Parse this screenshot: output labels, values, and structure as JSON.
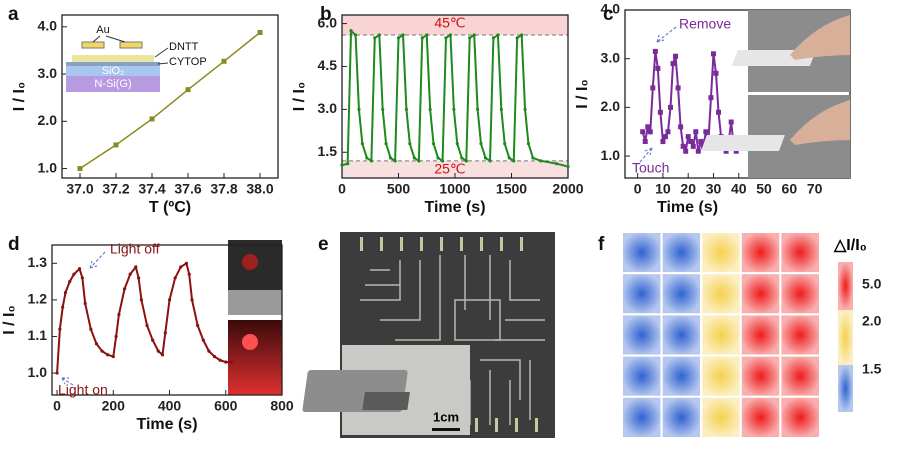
{
  "chart_data": [
    {
      "type": "line",
      "label": "a",
      "xlabel": "T (ºC)",
      "ylabel": "I / I₀",
      "color": "#8a8a1e",
      "marker": "square",
      "x": [
        37.0,
        37.2,
        37.4,
        37.6,
        37.8,
        38.0
      ],
      "values": [
        1.0,
        1.5,
        2.05,
        2.67,
        3.27,
        3.88
      ],
      "xlim": [
        36.9,
        38.1
      ],
      "xticks": [
        {
          "value": 37,
          "label": "37.0"
        },
        37.2,
        37.4,
        37.6,
        37.8,
        {
          "value": 38,
          "label": "38.0"
        }
      ],
      "ylim": [
        0.8,
        4.25
      ],
      "yticks": [
        {
          "value": 1,
          "label": "1.0"
        },
        {
          "value": 2,
          "label": "2.0"
        },
        {
          "value": 3,
          "label": "3.0"
        },
        {
          "value": 4,
          "label": "4.0"
        }
      ],
      "inset_labels": [
        "Au",
        "DNTT",
        "CYTOP",
        "SiO₂",
        "N-Si(G)"
      ]
    },
    {
      "type": "line",
      "label": "b",
      "xlabel": "Time (s)",
      "ylabel": "I / I₀",
      "color": "#1e8a1e",
      "marker": "circle",
      "x": [
        0,
        50,
        80,
        120,
        150,
        180,
        220,
        260,
        290,
        330,
        360,
        390,
        430,
        470,
        500,
        540,
        570,
        600,
        640,
        680,
        710,
        750,
        780,
        810,
        850,
        890,
        920,
        960,
        990,
        1020,
        1060,
        1100,
        1130,
        1170,
        1200,
        1230,
        1270,
        1310,
        1340,
        1380,
        1410,
        1440,
        1480,
        1520,
        1550,
        1590,
        1620,
        1650,
        1690,
        1760,
        1900,
        2000
      ],
      "values": [
        1.05,
        1.1,
        5.75,
        5.6,
        3.0,
        1.8,
        1.3,
        1.2,
        5.5,
        5.6,
        3.0,
        1.8,
        1.3,
        1.2,
        5.5,
        5.6,
        3.0,
        1.8,
        1.3,
        1.2,
        5.5,
        5.6,
        3.0,
        1.8,
        1.3,
        1.2,
        5.5,
        5.6,
        3.0,
        1.8,
        1.3,
        1.2,
        5.5,
        5.6,
        3.0,
        1.8,
        1.3,
        1.2,
        5.5,
        5.6,
        3.0,
        1.8,
        1.3,
        1.2,
        5.5,
        5.6,
        3.0,
        1.8,
        1.3,
        1.2,
        1.1,
        1.0
      ],
      "xlim": [
        0,
        2000
      ],
      "xticks": [
        0,
        500,
        1000,
        1500,
        2000
      ],
      "ylim": [
        0.6,
        6.3
      ],
      "yticks": [
        1.5,
        {
          "value": 3,
          "label": "3.0"
        },
        4.5,
        {
          "value": 6,
          "label": "6.0"
        }
      ],
      "reference_lines": [
        5.6,
        1.2
      ],
      "annotations": [
        "45℃",
        "25℃"
      ]
    },
    {
      "type": "line",
      "label": "c",
      "xlabel": "Time (s)",
      "ylabel": "I / I₀",
      "color": "#7a2a9a",
      "marker": "square",
      "x": [
        2,
        3,
        4,
        5,
        6,
        7,
        8,
        9,
        10,
        11,
        12,
        13,
        14,
        15,
        16,
        17,
        18,
        19,
        20,
        21,
        22,
        23,
        24,
        25,
        26,
        27,
        28,
        29,
        30,
        31,
        32,
        33,
        34,
        35,
        36,
        37,
        38,
        39,
        40
      ],
      "values": [
        1.5,
        1.3,
        1.6,
        1.5,
        2.4,
        3.15,
        2.8,
        1.9,
        1.3,
        1.4,
        1.5,
        2.0,
        2.9,
        3.05,
        2.4,
        1.6,
        1.2,
        1.1,
        1.4,
        1.3,
        1.2,
        1.5,
        1.1,
        1.3,
        1.2,
        1.5,
        1.3,
        2.2,
        3.1,
        2.7,
        1.9,
        1.4,
        1.2,
        1.1,
        1.3,
        1.7,
        1.2,
        1.1,
        1.2
      ],
      "xlim": [
        -5,
        84
      ],
      "xticks": [
        0,
        10,
        20,
        30,
        40,
        50,
        60,
        70
      ],
      "ylim": [
        0.55,
        4.0
      ],
      "yticks": [
        {
          "value": 1,
          "label": "1.0"
        },
        {
          "value": 2,
          "label": "2.0"
        },
        {
          "value": 3,
          "label": "3.0"
        },
        {
          "value": 4,
          "label": "4.0"
        }
      ],
      "annotations": [
        "Remove",
        "Touch"
      ]
    },
    {
      "type": "line",
      "label": "d",
      "xlabel": "Time (s)",
      "ylabel": "I / I₀",
      "color": "#8b1010",
      "marker": "circle",
      "x": [
        0,
        10,
        20,
        30,
        45,
        60,
        80,
        90,
        100,
        120,
        140,
        160,
        180,
        200,
        210,
        220,
        240,
        260,
        280,
        290,
        300,
        320,
        340,
        360,
        375,
        385,
        400,
        420,
        440,
        460,
        470,
        480,
        500,
        520,
        540,
        560,
        580,
        600,
        620
      ],
      "values": [
        1.0,
        1.12,
        1.18,
        1.22,
        1.25,
        1.27,
        1.285,
        1.26,
        1.19,
        1.12,
        1.08,
        1.06,
        1.05,
        1.045,
        1.1,
        1.16,
        1.23,
        1.27,
        1.29,
        1.26,
        1.2,
        1.13,
        1.09,
        1.06,
        1.05,
        1.11,
        1.2,
        1.26,
        1.29,
        1.3,
        1.27,
        1.2,
        1.13,
        1.09,
        1.06,
        1.045,
        1.035,
        1.03,
        1.03
      ],
      "xlim": [
        -18,
        800
      ],
      "xticks": [
        0,
        200,
        400,
        600,
        800
      ],
      "ylim": [
        0.94,
        1.35
      ],
      "yticks": [
        {
          "value": 1,
          "label": "1.0"
        },
        1.1,
        1.2,
        1.3
      ],
      "annotations": [
        "Light off",
        "Light on"
      ]
    },
    {
      "type": "image",
      "label": "e",
      "scale_bar": "1cm"
    },
    {
      "type": "heatmap",
      "label": "f",
      "colorbar_title": "△I/I₀",
      "values": [
        [
          1.5,
          1.5,
          2.0,
          5.0,
          5.0
        ],
        [
          1.5,
          1.5,
          2.0,
          5.0,
          5.0
        ],
        [
          1.5,
          1.5,
          2.0,
          5.0,
          5.0
        ],
        [
          1.5,
          1.5,
          2.0,
          5.0,
          5.0
        ],
        [
          1.5,
          1.5,
          2.0,
          5.0,
          5.0
        ]
      ],
      "colorscale": [
        [
          5.0,
          "#ee1b1b"
        ],
        [
          2.0,
          "#f5d04e"
        ],
        [
          1.5,
          "#2f62d0"
        ]
      ],
      "colorbar_ticks": [
        {
          "value": 5,
          "label": "5.0"
        },
        {
          "value": 2,
          "label": "2.0"
        },
        1.5
      ]
    }
  ]
}
